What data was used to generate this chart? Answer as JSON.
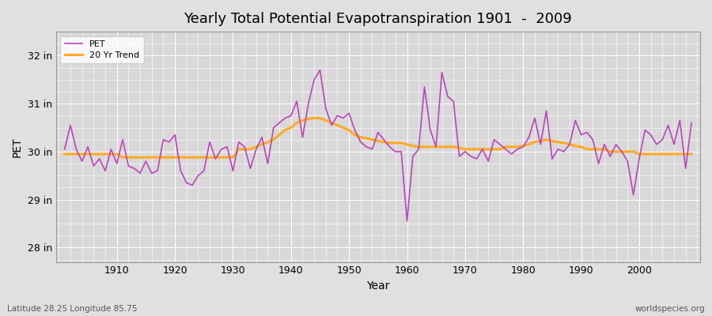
{
  "title": "Yearly Total Potential Evapotranspiration 1901  -  2009",
  "xlabel": "Year",
  "ylabel": "PET",
  "subtitle_left": "Latitude 28.25 Longitude 85.75",
  "subtitle_right": "worldspecies.org",
  "ylim": [
    27.7,
    32.5
  ],
  "xlim": [
    1899.5,
    2010.5
  ],
  "yticks": [
    28,
    29,
    30,
    31,
    32
  ],
  "ytick_labels": [
    "28 in",
    "29 in",
    "30 in",
    "31 in",
    "32 in"
  ],
  "xticks": [
    1910,
    1920,
    1930,
    1940,
    1950,
    1960,
    1970,
    1980,
    1990,
    2000
  ],
  "pet_color": "#bb44bb",
  "trend_color": "#ffaa22",
  "bg_color": "#e0e0e0",
  "plot_bg_color": "#d8d8d8",
  "grid_color": "#ffffff",
  "pet_years": [
    1901,
    1902,
    1903,
    1904,
    1905,
    1906,
    1907,
    1908,
    1909,
    1910,
    1911,
    1912,
    1913,
    1914,
    1915,
    1916,
    1917,
    1918,
    1919,
    1920,
    1921,
    1922,
    1923,
    1924,
    1925,
    1926,
    1927,
    1928,
    1929,
    1930,
    1931,
    1932,
    1933,
    1934,
    1935,
    1936,
    1937,
    1938,
    1939,
    1940,
    1941,
    1942,
    1943,
    1944,
    1945,
    1946,
    1947,
    1948,
    1949,
    1950,
    1951,
    1952,
    1953,
    1954,
    1955,
    1956,
    1957,
    1958,
    1959,
    1960,
    1961,
    1962,
    1963,
    1964,
    1965,
    1966,
    1967,
    1968,
    1969,
    1970,
    1971,
    1972,
    1973,
    1974,
    1975,
    1976,
    1977,
    1978,
    1979,
    1980,
    1981,
    1982,
    1983,
    1984,
    1985,
    1986,
    1987,
    1988,
    1989,
    1990,
    1991,
    1992,
    1993,
    1994,
    1995,
    1996,
    1997,
    1998,
    1999,
    2000,
    2001,
    2002,
    2003,
    2004,
    2005,
    2006,
    2007,
    2008,
    2009
  ],
  "pet_values": [
    30.05,
    30.55,
    30.05,
    29.8,
    30.1,
    29.7,
    29.85,
    29.6,
    30.05,
    29.75,
    30.25,
    29.7,
    29.65,
    29.55,
    29.8,
    29.55,
    29.6,
    30.25,
    30.2,
    30.35,
    29.6,
    29.35,
    29.3,
    29.5,
    29.6,
    30.2,
    29.85,
    30.05,
    30.1,
    29.6,
    30.2,
    30.1,
    29.65,
    30.05,
    30.3,
    29.75,
    30.5,
    30.6,
    30.7,
    30.75,
    31.05,
    30.3,
    31.0,
    31.5,
    31.7,
    30.9,
    30.55,
    30.75,
    30.7,
    30.8,
    30.45,
    30.2,
    30.1,
    30.05,
    30.4,
    30.25,
    30.1,
    30.0,
    30.0,
    28.55,
    29.9,
    30.05,
    31.35,
    30.45,
    30.1,
    31.65,
    31.15,
    31.05,
    29.9,
    30.0,
    29.9,
    29.85,
    30.05,
    29.8,
    30.25,
    30.15,
    30.05,
    29.95,
    30.05,
    30.1,
    30.3,
    30.7,
    30.15,
    30.85,
    29.85,
    30.05,
    30.0,
    30.15,
    30.65,
    30.35,
    30.4,
    30.25,
    29.75,
    30.15,
    29.9,
    30.15,
    30.0,
    29.8,
    29.1,
    29.85,
    30.45,
    30.35,
    30.15,
    30.25,
    30.55,
    30.15,
    30.65,
    29.65,
    30.6
  ],
  "trend_years": [
    1901,
    1902,
    1903,
    1904,
    1905,
    1906,
    1907,
    1908,
    1909,
    1910,
    1911,
    1912,
    1913,
    1914,
    1915,
    1916,
    1917,
    1918,
    1919,
    1920,
    1921,
    1922,
    1923,
    1924,
    1925,
    1926,
    1927,
    1928,
    1929,
    1930,
    1931,
    1932,
    1933,
    1934,
    1935,
    1936,
    1937,
    1938,
    1939,
    1940,
    1941,
    1942,
    1943,
    1944,
    1945,
    1946,
    1947,
    1948,
    1949,
    1950,
    1951,
    1952,
    1953,
    1954,
    1955,
    1956,
    1957,
    1958,
    1959,
    1960,
    1961,
    1962,
    1963,
    1964,
    1965,
    1966,
    1967,
    1968,
    1969,
    1970,
    1971,
    1972,
    1973,
    1974,
    1975,
    1976,
    1977,
    1978,
    1979,
    1980,
    1981,
    1982,
    1983,
    1984,
    1985,
    1986,
    1987,
    1988,
    1989,
    1990,
    1991,
    1992,
    1993,
    1994,
    1995,
    1996,
    1997,
    1998,
    1999,
    2000,
    2001,
    2002,
    2003,
    2004,
    2005,
    2006,
    2007,
    2008,
    2009
  ],
  "trend_values": [
    29.95,
    29.95,
    29.95,
    29.95,
    29.95,
    29.95,
    29.95,
    29.95,
    29.95,
    29.95,
    29.88,
    29.88,
    29.88,
    29.88,
    29.88,
    29.88,
    29.88,
    29.88,
    29.88,
    29.88,
    29.88,
    29.88,
    29.88,
    29.88,
    29.88,
    29.88,
    29.88,
    29.88,
    29.88,
    29.88,
    30.05,
    30.05,
    30.05,
    30.1,
    30.15,
    30.2,
    30.25,
    30.35,
    30.45,
    30.5,
    30.6,
    30.65,
    30.68,
    30.7,
    30.7,
    30.65,
    30.6,
    30.55,
    30.5,
    30.45,
    30.35,
    30.3,
    30.28,
    30.25,
    30.22,
    30.2,
    30.18,
    30.18,
    30.18,
    30.15,
    30.12,
    30.1,
    30.1,
    30.1,
    30.1,
    30.1,
    30.1,
    30.1,
    30.08,
    30.05,
    30.05,
    30.05,
    30.05,
    30.05,
    30.05,
    30.05,
    30.1,
    30.1,
    30.1,
    30.12,
    30.15,
    30.2,
    30.22,
    30.25,
    30.22,
    30.2,
    30.18,
    30.15,
    30.12,
    30.1,
    30.05,
    30.05,
    30.05,
    30.05,
    30.0,
    30.0,
    30.0,
    30.0,
    30.0,
    29.95,
    29.95,
    29.95,
    29.95,
    29.95,
    29.95,
    29.95,
    29.95,
    29.95,
    29.95
  ]
}
